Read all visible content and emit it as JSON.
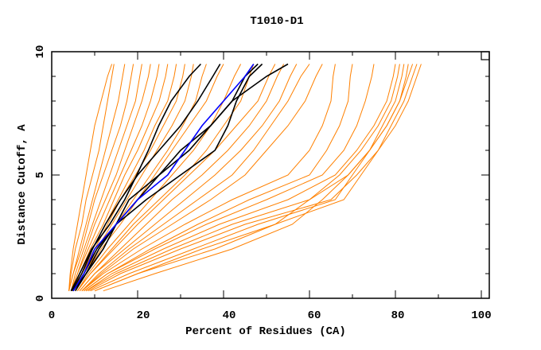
{
  "chart_data": {
    "type": "line",
    "title": "T1010-D1",
    "xlabel": "Percent of Residues (CA)",
    "ylabel": "Distance Cutoff, A",
    "xlim": [
      0,
      101.8
    ],
    "ylim": [
      0,
      10
    ],
    "x_ticks": [
      "0",
      "20",
      "40",
      "60",
      "80",
      "100"
    ],
    "y_ticks": [
      "0",
      "5",
      "10"
    ],
    "grid": false,
    "legend": "none",
    "colors": {
      "orange": "#ff8000",
      "black": "#000000",
      "blue": "#0000ff"
    },
    "y_levels": [
      0.3,
      1,
      2,
      3,
      4,
      5,
      6,
      7,
      8,
      9,
      9.5
    ],
    "orange_series": [
      [
        4,
        4.3,
        5,
        6,
        7,
        8,
        9,
        10,
        11.5,
        13,
        14
      ],
      [
        4,
        4.5,
        5.5,
        7,
        8,
        9.5,
        11,
        12,
        13,
        14,
        14.5
      ],
      [
        4,
        5,
        6.5,
        8,
        9.5,
        11,
        12.5,
        14,
        15.5,
        16.5,
        17
      ],
      [
        4,
        5,
        7,
        8.5,
        10,
        12,
        14,
        16,
        17.5,
        18.5,
        19
      ],
      [
        4.5,
        5.5,
        7.5,
        9.5,
        11.5,
        13.5,
        15.5,
        17.5,
        19.5,
        20.5,
        21
      ],
      [
        4.5,
        6,
        8,
        10,
        12.5,
        15,
        17,
        19,
        21,
        22.5,
        23
      ],
      [
        4.5,
        6,
        8.5,
        11,
        13.5,
        16,
        18.5,
        21,
        23,
        24.5,
        25
      ],
      [
        5,
        6.5,
        9,
        12,
        14.5,
        17,
        20,
        22.5,
        25,
        26.5,
        27
      ],
      [
        5,
        6.5,
        9.5,
        12.5,
        15.5,
        18.5,
        21.5,
        24,
        27,
        28.5,
        29
      ],
      [
        5,
        7,
        10,
        13,
        16,
        19.5,
        23,
        26,
        29,
        30.5,
        31
      ],
      [
        5,
        7,
        10.5,
        14,
        17.5,
        21,
        24.5,
        28,
        31,
        32.5,
        33
      ],
      [
        5.5,
        7.5,
        11,
        15,
        19,
        23,
        27,
        30.5,
        33.5,
        35,
        36
      ],
      [
        5.5,
        8,
        11.5,
        16,
        20,
        24,
        28,
        32,
        36,
        38.5,
        40
      ],
      [
        6,
        8.5,
        13,
        18,
        23,
        28,
        33,
        37,
        40,
        42.5,
        44
      ],
      [
        6,
        9,
        14,
        19,
        25,
        31,
        36,
        40,
        44,
        46,
        47
      ],
      [
        6,
        9,
        14.5,
        20,
        26,
        32,
        38,
        43,
        48,
        50.5,
        52
      ],
      [
        6.5,
        10,
        16,
        22,
        28,
        35,
        41,
        46,
        50,
        52.5,
        54
      ],
      [
        6.5,
        10,
        17,
        24,
        31,
        38,
        44,
        49,
        53,
        55.5,
        57
      ],
      [
        7,
        11,
        18,
        26,
        34,
        42,
        47,
        51,
        55,
        58,
        60
      ],
      [
        7,
        11.5,
        19,
        28,
        37,
        45,
        50,
        55,
        59,
        61.5,
        63
      ],
      [
        7,
        12,
        21,
        31,
        42,
        55,
        60,
        63,
        65,
        65.5,
        66
      ],
      [
        7.5,
        13,
        23,
        34,
        46,
        60,
        64,
        67,
        69,
        69.5,
        70
      ],
      [
        7.5,
        13,
        24,
        36,
        50,
        63,
        68,
        71,
        73,
        74.5,
        75
      ],
      [
        8,
        14,
        26,
        39,
        55,
        66,
        71,
        75,
        78,
        79.5,
        80
      ],
      [
        8,
        15,
        28,
        42,
        60,
        69,
        74,
        78,
        81,
        82.5,
        83
      ],
      [
        8.5,
        16,
        30,
        45,
        65,
        71,
        76,
        80,
        83,
        85,
        86
      ],
      [
        9,
        18,
        33,
        48,
        66,
        70,
        74,
        78,
        81,
        83,
        84
      ],
      [
        10,
        20,
        35,
        52,
        68,
        72,
        76,
        79,
        82,
        84,
        85
      ],
      [
        10,
        20,
        38,
        52,
        60,
        67,
        72,
        76,
        79,
        80.5,
        81
      ],
      [
        12,
        24,
        42,
        56,
        63,
        69,
        74,
        77,
        80,
        81.5,
        82
      ]
    ],
    "black_series": [
      [
        4.5,
        6.5,
        9.3,
        13.5,
        17,
        19.8,
        22.5,
        24.9,
        27.8,
        32,
        34.7
      ],
      [
        4.7,
        7,
        9.5,
        12.5,
        16,
        20,
        25,
        30,
        34,
        37.5,
        39.2
      ],
      [
        5.5,
        8,
        12,
        15,
        22,
        30,
        38,
        41,
        43,
        46,
        49
      ],
      [
        5,
        7.5,
        10.5,
        15,
        20,
        25,
        30,
        37,
        42,
        45,
        48
      ],
      [
        5,
        8,
        11,
        15,
        18,
        25,
        32,
        37,
        42,
        50,
        55
      ]
    ],
    "blue_series": [
      [
        5,
        7.5,
        10,
        15,
        20,
        27,
        31,
        35,
        40,
        45,
        47
      ]
    ]
  }
}
